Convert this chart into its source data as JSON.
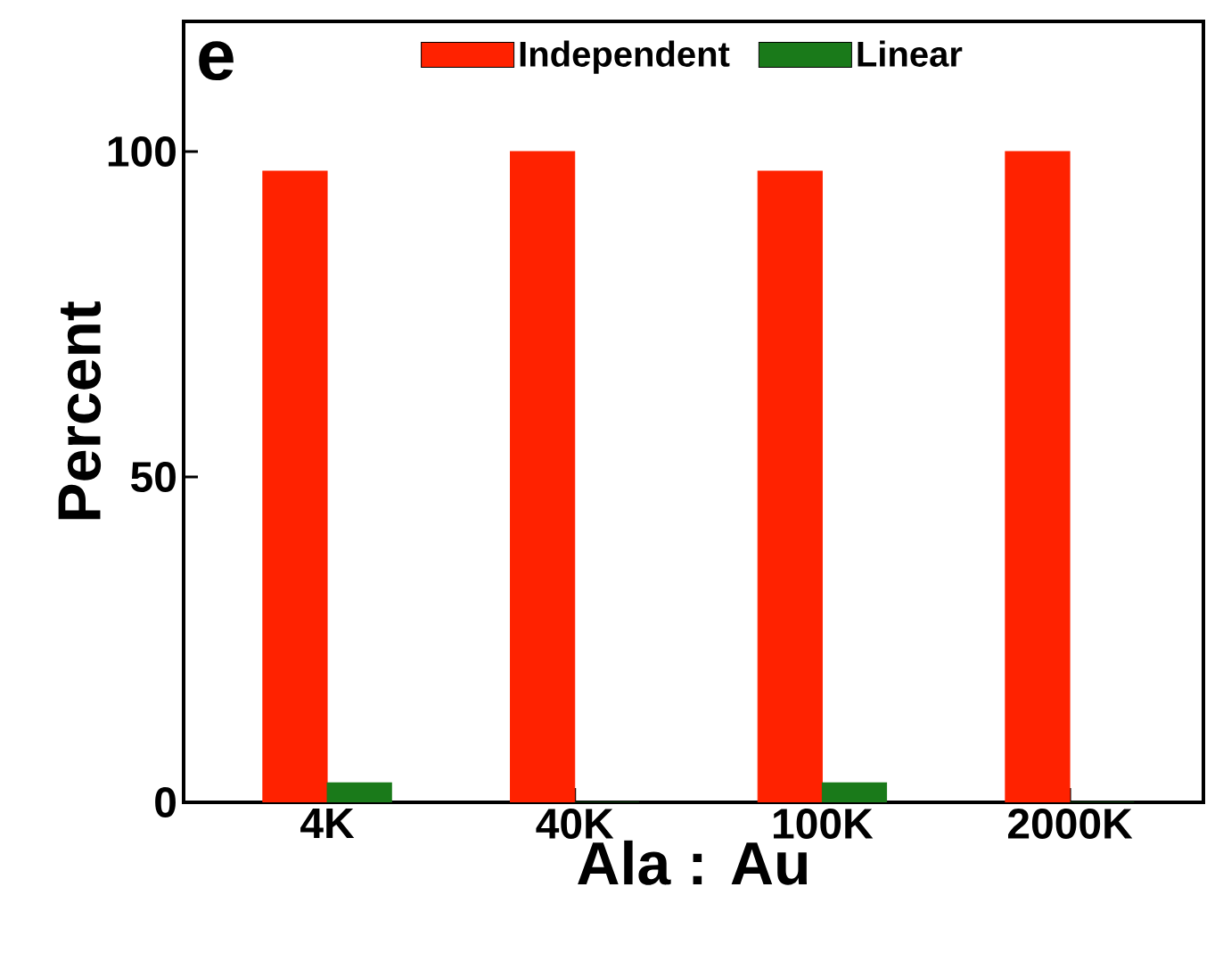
{
  "chart_data": {
    "type": "bar",
    "xlabel": "Ala : Au",
    "ylabel": "Percent",
    "annotations": [
      "e"
    ],
    "categories": [
      "4K",
      "40K",
      "100K",
      "2000K"
    ],
    "series": [
      {
        "name": "Independent",
        "color": "#ff2200",
        "values": [
          97,
          100,
          97,
          100
        ]
      },
      {
        "name": "Linear",
        "color": "#1a7a1a",
        "values": [
          3,
          0,
          3,
          0
        ]
      }
    ],
    "ylim": [
      0,
      120
    ],
    "yticks": [
      0,
      50,
      100
    ],
    "legend": "top"
  }
}
